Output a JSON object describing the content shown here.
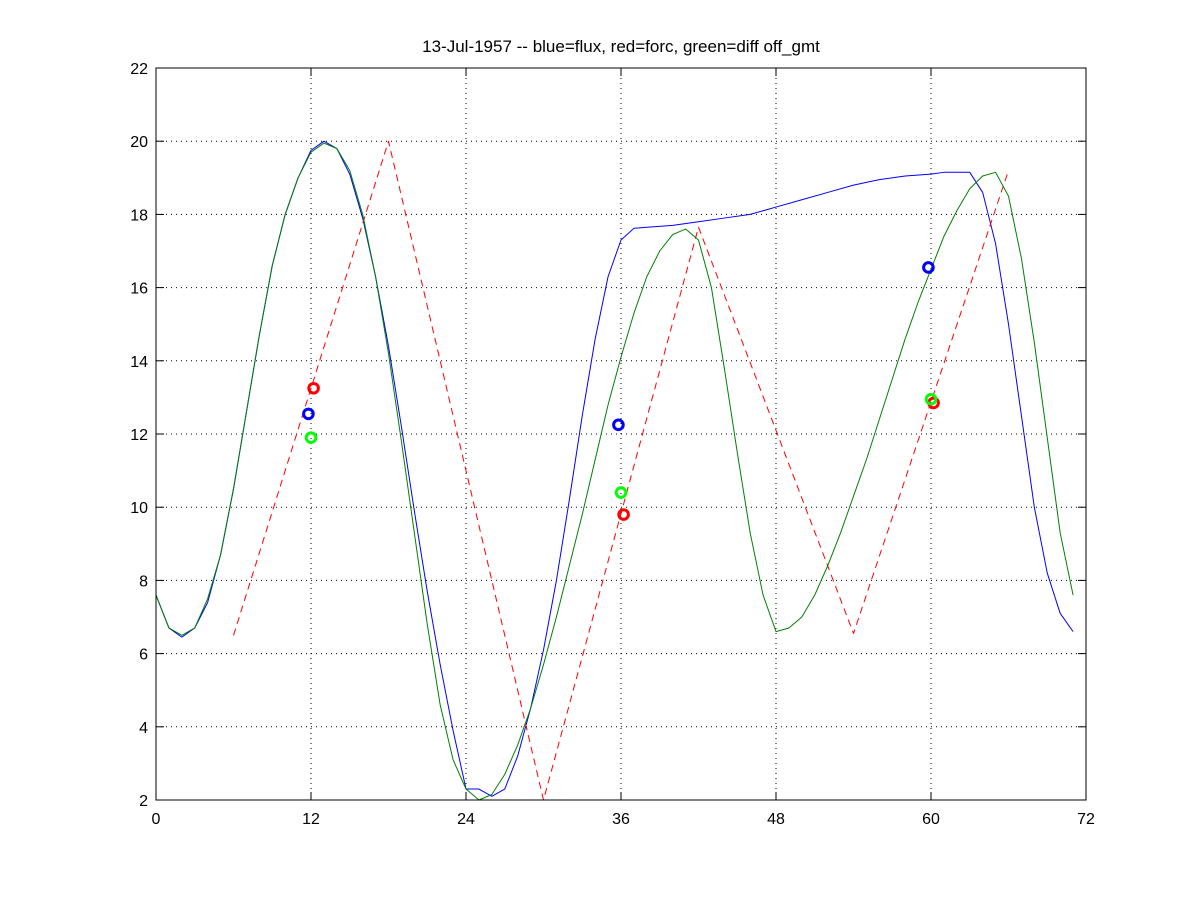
{
  "chart_data": {
    "type": "line",
    "title": "13-Jul-1957 -- blue=flux, red=forc, green=diff off_gmt",
    "xlabel": "",
    "ylabel": "",
    "xlim": [
      0,
      72
    ],
    "ylim": [
      2,
      22
    ],
    "xticks": [
      0,
      12,
      24,
      36,
      48,
      60,
      72
    ],
    "yticks": [
      2,
      4,
      6,
      8,
      10,
      12,
      14,
      16,
      18,
      20,
      22
    ],
    "grid": true,
    "grid_style": "dotted",
    "series": [
      {
        "color": "#0000ff",
        "style": "solid",
        "x": [
          0,
          1,
          2,
          3,
          4,
          5,
          6,
          7,
          8,
          9,
          10,
          11,
          12,
          13,
          14,
          15,
          16,
          17,
          18,
          19,
          20,
          21,
          22,
          23,
          24,
          25,
          26,
          27,
          28,
          29,
          30,
          31,
          32,
          33,
          34,
          35,
          36,
          37,
          38,
          40,
          42,
          44,
          46,
          48,
          50,
          52,
          54,
          56,
          58,
          60,
          61,
          62,
          63,
          64,
          65,
          66,
          67,
          68,
          69,
          70,
          71
        ],
        "y": [
          7.6,
          6.7,
          6.45,
          6.7,
          7.4,
          8.7,
          10.5,
          12.6,
          14.7,
          16.6,
          18.0,
          19.0,
          19.75,
          20.0,
          19.8,
          19.1,
          17.9,
          16.3,
          14.4,
          12.2,
          9.9,
          7.7,
          5.7,
          3.9,
          2.3,
          2.3,
          2.1,
          2.3,
          3.2,
          4.5,
          6.1,
          8.0,
          10.2,
          12.5,
          14.6,
          16.3,
          17.3,
          17.62,
          17.65,
          17.7,
          17.8,
          17.9,
          18.0,
          18.2,
          18.4,
          18.6,
          18.8,
          18.95,
          19.05,
          19.1,
          19.15,
          19.15,
          19.15,
          18.6,
          17.2,
          15.0,
          12.5,
          10.0,
          8.2,
          7.1,
          6.6
        ]
      },
      {
        "color": "#ff0000",
        "style": "dashed",
        "x": [
          6,
          18,
          30,
          42,
          54,
          66
        ],
        "y": [
          6.5,
          20.0,
          2.0,
          17.65,
          6.55,
          19.2
        ]
      },
      {
        "color": "#008000",
        "style": "solid",
        "x": [
          0,
          1,
          2,
          3,
          4,
          5,
          6,
          7,
          8,
          9,
          10,
          11,
          12,
          13,
          14,
          15,
          16,
          17,
          18,
          19,
          20,
          21,
          22,
          23,
          24,
          25,
          26,
          27,
          28,
          29,
          30,
          31,
          32,
          33,
          34,
          35,
          36,
          37,
          38,
          39,
          40,
          41,
          42,
          43,
          44,
          45,
          46,
          47,
          48,
          49,
          50,
          51,
          52,
          53,
          54,
          55,
          56,
          57,
          58,
          59,
          60,
          61,
          62,
          63,
          64,
          65,
          66,
          67,
          68,
          69,
          70,
          71
        ],
        "y": [
          7.6,
          6.7,
          6.5,
          6.7,
          7.5,
          8.7,
          10.5,
          12.6,
          14.7,
          16.6,
          18.0,
          19.0,
          19.7,
          19.95,
          19.8,
          19.2,
          18.0,
          16.3,
          14.2,
          11.8,
          9.3,
          6.8,
          4.6,
          3.1,
          2.3,
          2.0,
          2.15,
          2.7,
          3.5,
          4.5,
          5.7,
          7.0,
          8.4,
          9.8,
          11.3,
          12.8,
          14.1,
          15.3,
          16.3,
          17.0,
          17.45,
          17.6,
          17.3,
          16.0,
          13.8,
          11.5,
          9.3,
          7.6,
          6.6,
          6.7,
          7.0,
          7.6,
          8.4,
          9.3,
          10.3,
          11.3,
          12.4,
          13.5,
          14.6,
          15.6,
          16.5,
          17.4,
          18.1,
          18.7,
          19.05,
          19.15,
          18.5,
          16.8,
          14.5,
          11.9,
          9.3,
          7.6
        ]
      }
    ],
    "markers": [
      {
        "color": "#0000ff",
        "x": 11.8,
        "y": 12.55
      },
      {
        "color": "#ff0000",
        "x": 12.2,
        "y": 13.25
      },
      {
        "color": "#00ff00",
        "x": 12.0,
        "y": 11.9
      },
      {
        "color": "#0000ff",
        "x": 35.8,
        "y": 12.25
      },
      {
        "color": "#00ff00",
        "x": 36.0,
        "y": 10.4
      },
      {
        "color": "#ff0000",
        "x": 36.2,
        "y": 9.8
      },
      {
        "color": "#0000ff",
        "x": 59.8,
        "y": 16.55
      },
      {
        "color": "#ff0000",
        "x": 60.2,
        "y": 12.85
      },
      {
        "color": "#00ff00",
        "x": 60.0,
        "y": 12.95
      }
    ]
  }
}
